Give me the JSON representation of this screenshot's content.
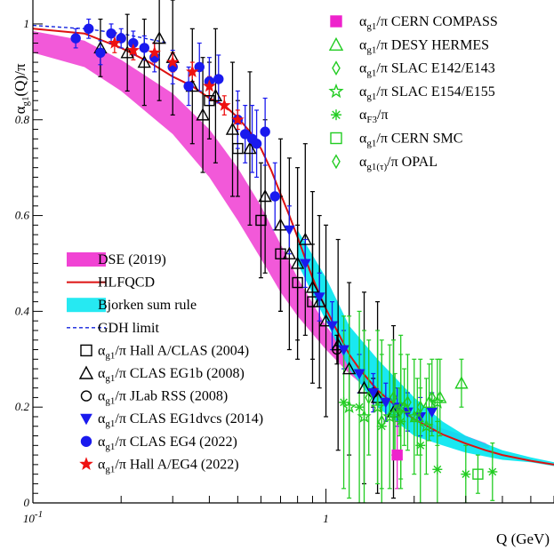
{
  "chart_data": {
    "type": "scatter",
    "xlabel": "Q (GeV)",
    "ylabel_main": "α",
    "ylabel_sub": "g1",
    "ylabel_rest": "(Q)/π",
    "x_scale": "log",
    "xlim": [
      0.1,
      6.0
    ],
    "ylim": [
      0,
      1.05
    ],
    "x_ticks": [
      {
        "value": 0.1,
        "label": "10",
        "sup": "-1"
      },
      {
        "value": 1,
        "label": "1",
        "sup": ""
      }
    ],
    "y_ticks": [
      {
        "value": 0,
        "label": "0"
      },
      {
        "value": 0.2,
        "label": "0.2"
      },
      {
        "value": 0.4,
        "label": "0.4"
      },
      {
        "value": 0.6,
        "label": "0.6"
      },
      {
        "value": 0.8,
        "label": "0.8"
      },
      {
        "value": 1.0,
        "label": "1"
      }
    ],
    "grid": false,
    "colors": {
      "dse": "#ee22cc",
      "hlfqcd": "#dd1111",
      "bjorken": "#00e5f0",
      "gdh": "#1122dd",
      "green": "#22cc22",
      "blue": "#1a1aee",
      "red": "#ee1111",
      "black": "#000000"
    },
    "bands": [
      {
        "id": "dse",
        "upper": [
          [
            0.1,
            0.985
          ],
          [
            0.15,
            0.965
          ],
          [
            0.2,
            0.925
          ],
          [
            0.3,
            0.855
          ],
          [
            0.4,
            0.78
          ],
          [
            0.5,
            0.7
          ],
          [
            0.6,
            0.62
          ],
          [
            0.7,
            0.54
          ],
          [
            0.8,
            0.47
          ],
          [
            1.0,
            0.37
          ],
          [
            1.2,
            0.305
          ],
          [
            1.5,
            0.24
          ],
          [
            2.0,
            0.185
          ],
          [
            2.5,
            0.155
          ],
          [
            3.0,
            0.14
          ],
          [
            3.5,
            0.125
          ],
          [
            3.6,
            0.12
          ]
        ],
        "lower": [
          [
            0.1,
            0.94
          ],
          [
            0.15,
            0.91
          ],
          [
            0.2,
            0.86
          ],
          [
            0.3,
            0.77
          ],
          [
            0.4,
            0.68
          ],
          [
            0.5,
            0.59
          ],
          [
            0.6,
            0.51
          ],
          [
            0.7,
            0.44
          ],
          [
            0.8,
            0.39
          ],
          [
            1.0,
            0.32
          ],
          [
            1.2,
            0.27
          ],
          [
            1.5,
            0.22
          ],
          [
            2.0,
            0.17
          ],
          [
            2.5,
            0.145
          ],
          [
            3.0,
            0.125
          ],
          [
            3.5,
            0.115
          ],
          [
            3.6,
            0.115
          ]
        ]
      },
      {
        "id": "bjorken",
        "upper": [
          [
            0.8,
            0.57
          ],
          [
            1.0,
            0.47
          ],
          [
            1.2,
            0.37
          ],
          [
            1.5,
            0.3
          ],
          [
            2.0,
            0.22
          ],
          [
            2.5,
            0.17
          ],
          [
            3.0,
            0.14
          ],
          [
            4.0,
            0.11
          ],
          [
            5.0,
            0.095
          ],
          [
            6.0,
            0.085
          ]
        ],
        "lower": [
          [
            0.8,
            0.5
          ],
          [
            1.0,
            0.38
          ],
          [
            1.2,
            0.28
          ],
          [
            1.5,
            0.2
          ],
          [
            2.0,
            0.14
          ],
          [
            2.5,
            0.12
          ],
          [
            3.0,
            0.105
          ],
          [
            4.0,
            0.09
          ],
          [
            5.0,
            0.085
          ],
          [
            6.0,
            0.077
          ]
        ]
      }
    ],
    "curves": [
      {
        "id": "hlfqcd",
        "points": [
          [
            0.1,
            0.99
          ],
          [
            0.15,
            0.98
          ],
          [
            0.2,
            0.95
          ],
          [
            0.25,
            0.92
          ],
          [
            0.3,
            0.89
          ],
          [
            0.35,
            0.87
          ],
          [
            0.4,
            0.845
          ],
          [
            0.45,
            0.83
          ],
          [
            0.5,
            0.805
          ],
          [
            0.55,
            0.775
          ],
          [
            0.6,
            0.74
          ],
          [
            0.65,
            0.695
          ],
          [
            0.7,
            0.645
          ],
          [
            0.75,
            0.6
          ],
          [
            0.8,
            0.555
          ],
          [
            0.85,
            0.51
          ],
          [
            0.9,
            0.47
          ],
          [
            0.95,
            0.435
          ],
          [
            1.0,
            0.405
          ],
          [
            1.1,
            0.355
          ],
          [
            1.2,
            0.31
          ],
          [
            1.3,
            0.28
          ],
          [
            1.5,
            0.235
          ],
          [
            1.75,
            0.2
          ],
          [
            2.0,
            0.175
          ],
          [
            2.5,
            0.143
          ],
          [
            3.0,
            0.124
          ],
          [
            3.5,
            0.11
          ],
          [
            4.0,
            0.1
          ],
          [
            5.0,
            0.088
          ],
          [
            6.0,
            0.08
          ]
        ]
      },
      {
        "id": "gdh",
        "points": [
          [
            0.1,
            0.997
          ],
          [
            0.15,
            0.99
          ],
          [
            0.2,
            0.98
          ],
          [
            0.25,
            0.968
          ],
          [
            0.29,
            0.96
          ]
        ]
      }
    ],
    "series": [
      {
        "id": "hallA_clas_2004",
        "marker": "square-open",
        "color": "#000000",
        "points": [
          [
            0.4,
            0.84,
            0.08
          ],
          [
            0.5,
            0.74,
            0.1
          ],
          [
            0.6,
            0.59,
            0.12
          ],
          [
            0.7,
            0.52,
            0.12
          ],
          [
            0.8,
            0.46,
            0.12
          ],
          [
            0.9,
            0.42,
            0.12
          ]
        ]
      },
      {
        "id": "clas_eg1b_2008",
        "marker": "triangle-open",
        "color": "#000000",
        "points": [
          [
            0.17,
            0.95,
            0.06
          ],
          [
            0.21,
            0.94,
            0.08
          ],
          [
            0.24,
            0.92,
            0.09
          ],
          [
            0.27,
            0.97,
            0.13
          ],
          [
            0.3,
            0.93,
            0.12
          ],
          [
            0.35,
            0.87,
            0.12
          ],
          [
            0.38,
            0.81,
            0.12
          ],
          [
            0.42,
            0.85,
            0.14
          ],
          [
            0.48,
            0.78,
            0.14
          ],
          [
            0.55,
            0.74,
            0.16
          ],
          [
            0.62,
            0.64,
            0.16
          ],
          [
            0.7,
            0.58,
            0.18
          ],
          [
            0.75,
            0.52,
            0.2
          ],
          [
            0.8,
            0.5,
            0.2
          ],
          [
            0.85,
            0.55,
            0.2
          ],
          [
            0.9,
            0.45,
            0.2
          ],
          [
            0.95,
            0.42,
            0.18
          ],
          [
            1.0,
            0.38,
            0.2
          ],
          [
            1.1,
            0.33,
            0.22
          ],
          [
            1.2,
            0.28,
            0.18
          ],
          [
            1.35,
            0.24,
            0.2
          ],
          [
            1.5,
            0.22,
            0.2
          ],
          [
            1.7,
            0.19,
            0.18
          ]
        ]
      },
      {
        "id": "jlab_rss_2008",
        "marker": "circle-open",
        "color": "#000000",
        "points": [
          [
            1.09,
            0.32,
            0.03
          ],
          [
            1.45,
            0.23,
            0.03
          ]
        ]
      },
      {
        "id": "clas_eg1dvcs_2014",
        "marker": "triangle-down-filled",
        "color": "#1a1aee",
        "points": [
          [
            0.75,
            0.57,
            0.05
          ],
          [
            0.85,
            0.5,
            0.05
          ],
          [
            0.95,
            0.43,
            0.05
          ],
          [
            1.05,
            0.37,
            0.05
          ],
          [
            1.15,
            0.32,
            0.04
          ],
          [
            1.3,
            0.27,
            0.04
          ],
          [
            1.45,
            0.23,
            0.04
          ],
          [
            1.6,
            0.21,
            0.04
          ],
          [
            1.75,
            0.2,
            0.04
          ],
          [
            1.9,
            0.19,
            0.04
          ],
          [
            2.1,
            0.18,
            0.04
          ],
          [
            2.3,
            0.19,
            0.04
          ]
        ]
      },
      {
        "id": "clas_eg4_2022",
        "marker": "circle-filled",
        "color": "#1a1aee",
        "points": [
          [
            0.14,
            0.97,
            0.02
          ],
          [
            0.155,
            0.99,
            0.02
          ],
          [
            0.17,
            0.94,
            0.025
          ],
          [
            0.185,
            0.98,
            0.02
          ],
          [
            0.2,
            0.97,
            0.02
          ],
          [
            0.22,
            0.96,
            0.025
          ],
          [
            0.24,
            0.95,
            0.025
          ],
          [
            0.26,
            0.93,
            0.03
          ],
          [
            0.3,
            0.91,
            0.035
          ],
          [
            0.34,
            0.87,
            0.04
          ],
          [
            0.37,
            0.91,
            0.05
          ],
          [
            0.4,
            0.88,
            0.05
          ],
          [
            0.43,
            0.885,
            0.05
          ],
          [
            0.5,
            0.8,
            0.06
          ],
          [
            0.53,
            0.77,
            0.06
          ],
          [
            0.56,
            0.76,
            0.07
          ],
          [
            0.58,
            0.75,
            0.07
          ],
          [
            0.62,
            0.775,
            0.07
          ],
          [
            0.67,
            0.64,
            0.07
          ]
        ]
      },
      {
        "id": "hallA_eg4_2022",
        "marker": "star-filled",
        "color": "#ee1111",
        "points": [
          [
            0.19,
            0.96,
            0.02
          ],
          [
            0.22,
            0.945,
            0.02
          ],
          [
            0.26,
            0.94,
            0.02
          ],
          [
            0.3,
            0.92,
            0.02
          ],
          [
            0.35,
            0.9,
            0.02
          ],
          [
            0.4,
            0.87,
            0.02
          ],
          [
            0.45,
            0.83,
            0.02
          ],
          [
            0.5,
            0.8,
            0.02
          ]
        ]
      },
      {
        "id": "cern_compass",
        "marker": "square-filled",
        "color": "#ee22cc",
        "points": [
          [
            1.75,
            0.1,
            0.07
          ]
        ]
      },
      {
        "id": "desy_hermes",
        "marker": "triangle-open",
        "color": "#22cc22",
        "points": [
          [
            1.72,
            0.19,
            0.08
          ],
          [
            1.85,
            0.2,
            0.08
          ],
          [
            2.05,
            0.18,
            0.08
          ],
          [
            2.25,
            0.21,
            0.08
          ],
          [
            2.45,
            0.22,
            0.08
          ],
          [
            2.9,
            0.25,
            0.05
          ]
        ]
      },
      {
        "id": "slac_e142_e143",
        "marker": "diamond-open",
        "color": "#22cc22",
        "points": [
          [
            1.4,
            0.22,
            0.12
          ],
          [
            1.55,
            0.17,
            0.14
          ],
          [
            1.7,
            0.22,
            0.12
          ],
          [
            1.9,
            0.21,
            0.1
          ],
          [
            2.1,
            0.2,
            0.1
          ],
          [
            2.3,
            0.22,
            0.08
          ]
        ]
      },
      {
        "id": "slac_e154_e155",
        "marker": "star-open",
        "color": "#22cc22",
        "points": [
          [
            1.2,
            0.2,
            0.19
          ],
          [
            1.35,
            0.18,
            0.18
          ],
          [
            1.5,
            0.2,
            0.16
          ],
          [
            1.65,
            0.18,
            0.15
          ],
          [
            1.8,
            0.2,
            0.15
          ],
          [
            2.0,
            0.18,
            0.12
          ],
          [
            2.2,
            0.16,
            0.1
          ],
          [
            2.4,
            0.21,
            0.09
          ]
        ]
      },
      {
        "id": "alpha_f3",
        "marker": "asterisk",
        "color": "#22cc22",
        "points": [
          [
            1.15,
            0.21,
            0.18
          ],
          [
            1.3,
            0.2,
            0.2
          ],
          [
            1.55,
            0.16,
            0.18
          ],
          [
            1.8,
            0.17,
            0.14
          ],
          [
            2.1,
            0.12,
            0.12
          ],
          [
            2.4,
            0.07,
            0.1
          ],
          [
            3.0,
            0.06,
            0.06
          ],
          [
            3.7,
            0.065,
            0.06
          ]
        ]
      },
      {
        "id": "cern_smc",
        "marker": "square-open",
        "color": "#22cc22",
        "points": [
          [
            3.3,
            0.06,
            0.04
          ]
        ]
      },
      {
        "id": "opal",
        "marker": "diamond-open",
        "color": "#22cc22",
        "points": [
          [
            1.78,
            0.19,
            0.05
          ]
        ]
      }
    ],
    "legend_right": [
      {
        "marker": "square-filled",
        "color": "#ee22cc",
        "pre": "α",
        "sub": "g1",
        "post": "/π CERN COMPASS"
      },
      {
        "marker": "triangle-open",
        "color": "#22cc22",
        "pre": "α",
        "sub": "g1",
        "post": "/π DESY HERMES"
      },
      {
        "marker": "diamond-open",
        "color": "#22cc22",
        "pre": "α",
        "sub": "g1",
        "post": "/π SLAC E142/E143"
      },
      {
        "marker": "star-open",
        "color": "#22cc22",
        "pre": "α",
        "sub": "g1",
        "post": "/π SLAC E154/E155"
      },
      {
        "marker": "asterisk",
        "color": "#22cc22",
        "pre": "α",
        "sub": "F3",
        "post": "/π"
      },
      {
        "marker": "square-open",
        "color": "#22cc22",
        "pre": "α",
        "sub": "g1",
        "post": "/π CERN SMC"
      },
      {
        "marker": "diamond-open",
        "color": "#22cc22",
        "pre": "α",
        "sub": "g1(τ)",
        "post": "/π OPAL"
      }
    ],
    "legend_left": [
      {
        "marker": "band",
        "color": "#ee22cc",
        "pre": "DSE (2019)",
        "sub": "",
        "post": ""
      },
      {
        "marker": "line",
        "color": "#dd1111",
        "pre": "HLFQCD",
        "sub": "",
        "post": ""
      },
      {
        "marker": "band",
        "color": "#00e5f0",
        "pre": "Bjorken sum rule",
        "sub": "",
        "post": ""
      },
      {
        "marker": "dashed",
        "color": "#1122dd",
        "pre": "GDH limit",
        "sub": "",
        "post": ""
      },
      {
        "marker": "square-open",
        "color": "#000000",
        "pre": "α",
        "sub": "g1",
        "post": "/π Hall A/CLAS (2004)"
      },
      {
        "marker": "triangle-open",
        "color": "#000000",
        "pre": "α",
        "sub": "g1",
        "post": "/π CLAS EG1b (2008)"
      },
      {
        "marker": "circle-open",
        "color": "#000000",
        "pre": "α",
        "sub": "g1",
        "post": "/π JLab RSS (2008)"
      },
      {
        "marker": "triangle-down-filled",
        "color": "#1a1aee",
        "pre": "α",
        "sub": "g1",
        "post": "/π CLAS EG1dvcs (2014)"
      },
      {
        "marker": "circle-filled",
        "color": "#1a1aee",
        "pre": "α",
        "sub": "g1",
        "post": "/π CLAS EG4 (2022)"
      },
      {
        "marker": "star-filled",
        "color": "#ee1111",
        "pre": "α",
        "sub": "g1",
        "post": "/π Hall A/EG4 (2022)"
      }
    ]
  }
}
